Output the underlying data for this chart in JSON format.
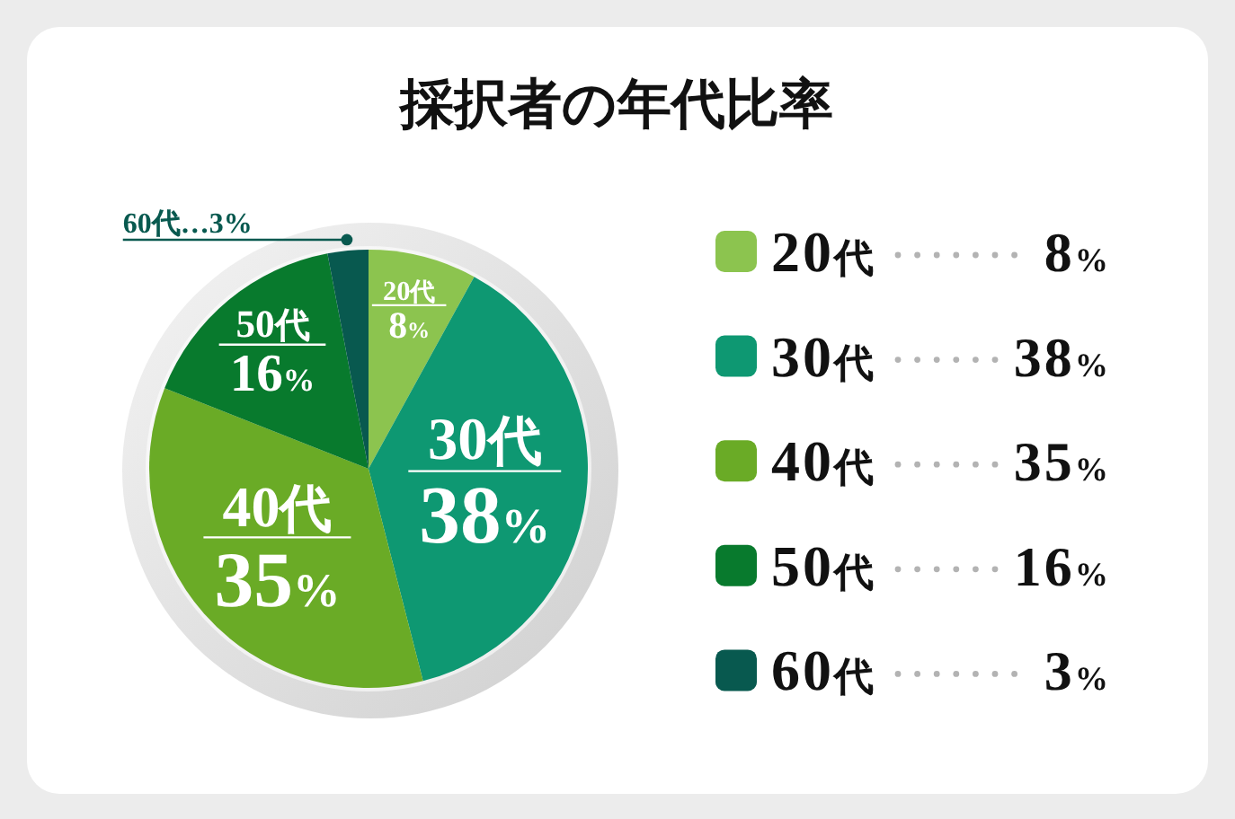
{
  "chart_data": {
    "type": "pie",
    "title": "採択者の年代比率",
    "categories": [
      "20代",
      "30代",
      "40代",
      "50代",
      "60代"
    ],
    "values": [
      8,
      38,
      35,
      16,
      3
    ],
    "colors": [
      "#8cc44f",
      "#0e9872",
      "#6aab26",
      "#087a2d",
      "#08594f"
    ],
    "value_labels": [
      "8%",
      "38%",
      "35%",
      "16%",
      "3%"
    ],
    "legend": "right",
    "annotations": [
      {
        "text": "60代…3%",
        "x": "60代"
      }
    ]
  }
}
